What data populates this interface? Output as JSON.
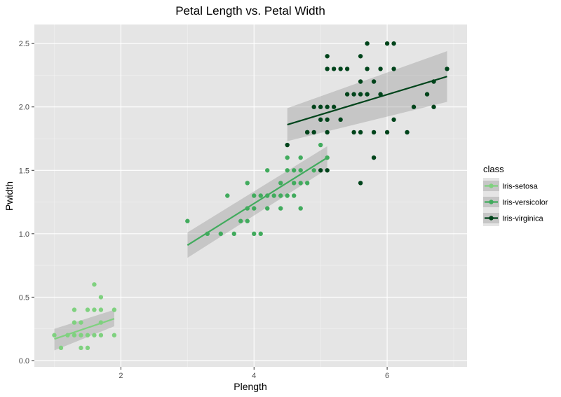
{
  "chart_data": {
    "type": "scatter",
    "title": "Petal Length vs. Petal Width",
    "xlabel": "Plength",
    "ylabel": "Pwidth",
    "xlim": [
      0.7,
      7.2
    ],
    "ylim": [
      -0.05,
      2.65
    ],
    "x_ticks": [
      2,
      4,
      6
    ],
    "y_ticks": [
      0.0,
      0.5,
      1.0,
      1.5,
      2.0,
      2.5
    ],
    "x_tick_labels": [
      "2",
      "4",
      "6"
    ],
    "y_tick_labels": [
      "0.0",
      "0.5",
      "1.0",
      "1.5",
      "2.0",
      "2.5"
    ],
    "grid": true,
    "legend_title": "class",
    "legend_position": "right",
    "series": [
      {
        "name": "Iris-setosa",
        "color": "#7fd17f",
        "points": [
          [
            1.0,
            0.2
          ],
          [
            1.1,
            0.1
          ],
          [
            1.2,
            0.2
          ],
          [
            1.3,
            0.2
          ],
          [
            1.3,
            0.3
          ],
          [
            1.3,
            0.4
          ],
          [
            1.4,
            0.1
          ],
          [
            1.4,
            0.2
          ],
          [
            1.4,
            0.3
          ],
          [
            1.5,
            0.1
          ],
          [
            1.5,
            0.2
          ],
          [
            1.5,
            0.4
          ],
          [
            1.6,
            0.2
          ],
          [
            1.6,
            0.4
          ],
          [
            1.6,
            0.6
          ],
          [
            1.7,
            0.2
          ],
          [
            1.7,
            0.3
          ],
          [
            1.7,
            0.4
          ],
          [
            1.7,
            0.5
          ],
          [
            1.9,
            0.2
          ],
          [
            1.9,
            0.4
          ]
        ],
        "fit": {
          "x": [
            1.0,
            1.9
          ],
          "y": [
            0.17,
            0.33
          ],
          "ci_low": [
            0.08,
            0.27
          ],
          "ci_high": [
            0.25,
            0.4
          ]
        }
      },
      {
        "name": "Iris-versicolor",
        "color": "#41ab5d",
        "points": [
          [
            3.0,
            1.1
          ],
          [
            3.3,
            1.0
          ],
          [
            3.5,
            1.0
          ],
          [
            3.6,
            1.3
          ],
          [
            3.7,
            1.0
          ],
          [
            3.8,
            1.1
          ],
          [
            3.9,
            1.1
          ],
          [
            3.9,
            1.2
          ],
          [
            3.9,
            1.4
          ],
          [
            4.0,
            1.0
          ],
          [
            4.0,
            1.2
          ],
          [
            4.0,
            1.3
          ],
          [
            4.1,
            1.0
          ],
          [
            4.1,
            1.3
          ],
          [
            4.2,
            1.2
          ],
          [
            4.2,
            1.3
          ],
          [
            4.2,
            1.5
          ],
          [
            4.3,
            1.3
          ],
          [
            4.4,
            1.2
          ],
          [
            4.4,
            1.3
          ],
          [
            4.4,
            1.4
          ],
          [
            4.5,
            1.3
          ],
          [
            4.5,
            1.5
          ],
          [
            4.6,
            1.3
          ],
          [
            4.6,
            1.4
          ],
          [
            4.6,
            1.5
          ],
          [
            4.7,
            1.2
          ],
          [
            4.7,
            1.4
          ],
          [
            4.7,
            1.5
          ],
          [
            4.8,
            1.4
          ],
          [
            4.9,
            1.5
          ],
          [
            5.0,
            1.7
          ],
          [
            5.1,
            1.6
          ],
          [
            4.5,
            1.6
          ],
          [
            4.7,
            1.6
          ]
        ],
        "fit": {
          "x": [
            3.0,
            5.1
          ],
          "y": [
            0.91,
            1.6
          ],
          "ci_low": [
            0.81,
            1.51
          ],
          "ci_high": [
            1.01,
            1.69
          ]
        }
      },
      {
        "name": "Iris-virginica",
        "color": "#00441b",
        "points": [
          [
            4.5,
            1.7
          ],
          [
            4.8,
            1.8
          ],
          [
            4.8,
            1.8
          ],
          [
            4.9,
            1.8
          ],
          [
            4.9,
            2.0
          ],
          [
            5.0,
            1.5
          ],
          [
            5.0,
            1.9
          ],
          [
            5.0,
            2.0
          ],
          [
            5.1,
            1.5
          ],
          [
            5.1,
            1.8
          ],
          [
            5.1,
            1.9
          ],
          [
            5.1,
            2.0
          ],
          [
            5.1,
            2.3
          ],
          [
            5.1,
            2.4
          ],
          [
            5.2,
            2.0
          ],
          [
            5.2,
            2.3
          ],
          [
            5.3,
            1.9
          ],
          [
            5.3,
            2.3
          ],
          [
            5.4,
            2.1
          ],
          [
            5.4,
            2.3
          ],
          [
            5.5,
            1.8
          ],
          [
            5.5,
            2.1
          ],
          [
            5.6,
            1.4
          ],
          [
            5.6,
            1.8
          ],
          [
            5.6,
            2.1
          ],
          [
            5.6,
            2.2
          ],
          [
            5.6,
            2.4
          ],
          [
            5.7,
            2.1
          ],
          [
            5.7,
            2.3
          ],
          [
            5.7,
            2.5
          ],
          [
            5.8,
            1.6
          ],
          [
            5.8,
            1.8
          ],
          [
            5.8,
            2.2
          ],
          [
            5.9,
            2.1
          ],
          [
            5.9,
            2.3
          ],
          [
            6.0,
            1.8
          ],
          [
            6.0,
            2.5
          ],
          [
            6.1,
            1.9
          ],
          [
            6.1,
            2.3
          ],
          [
            6.1,
            2.5
          ],
          [
            6.3,
            1.8
          ],
          [
            6.4,
            2.0
          ],
          [
            6.6,
            2.1
          ],
          [
            6.7,
            2.0
          ],
          [
            6.7,
            2.2
          ],
          [
            6.9,
            2.3
          ]
        ],
        "fit": {
          "x": [
            4.5,
            6.9
          ],
          "y": [
            1.86,
            2.24
          ],
          "ci_low": [
            1.73,
            2.04
          ],
          "ci_high": [
            1.99,
            2.44
          ]
        }
      }
    ]
  }
}
